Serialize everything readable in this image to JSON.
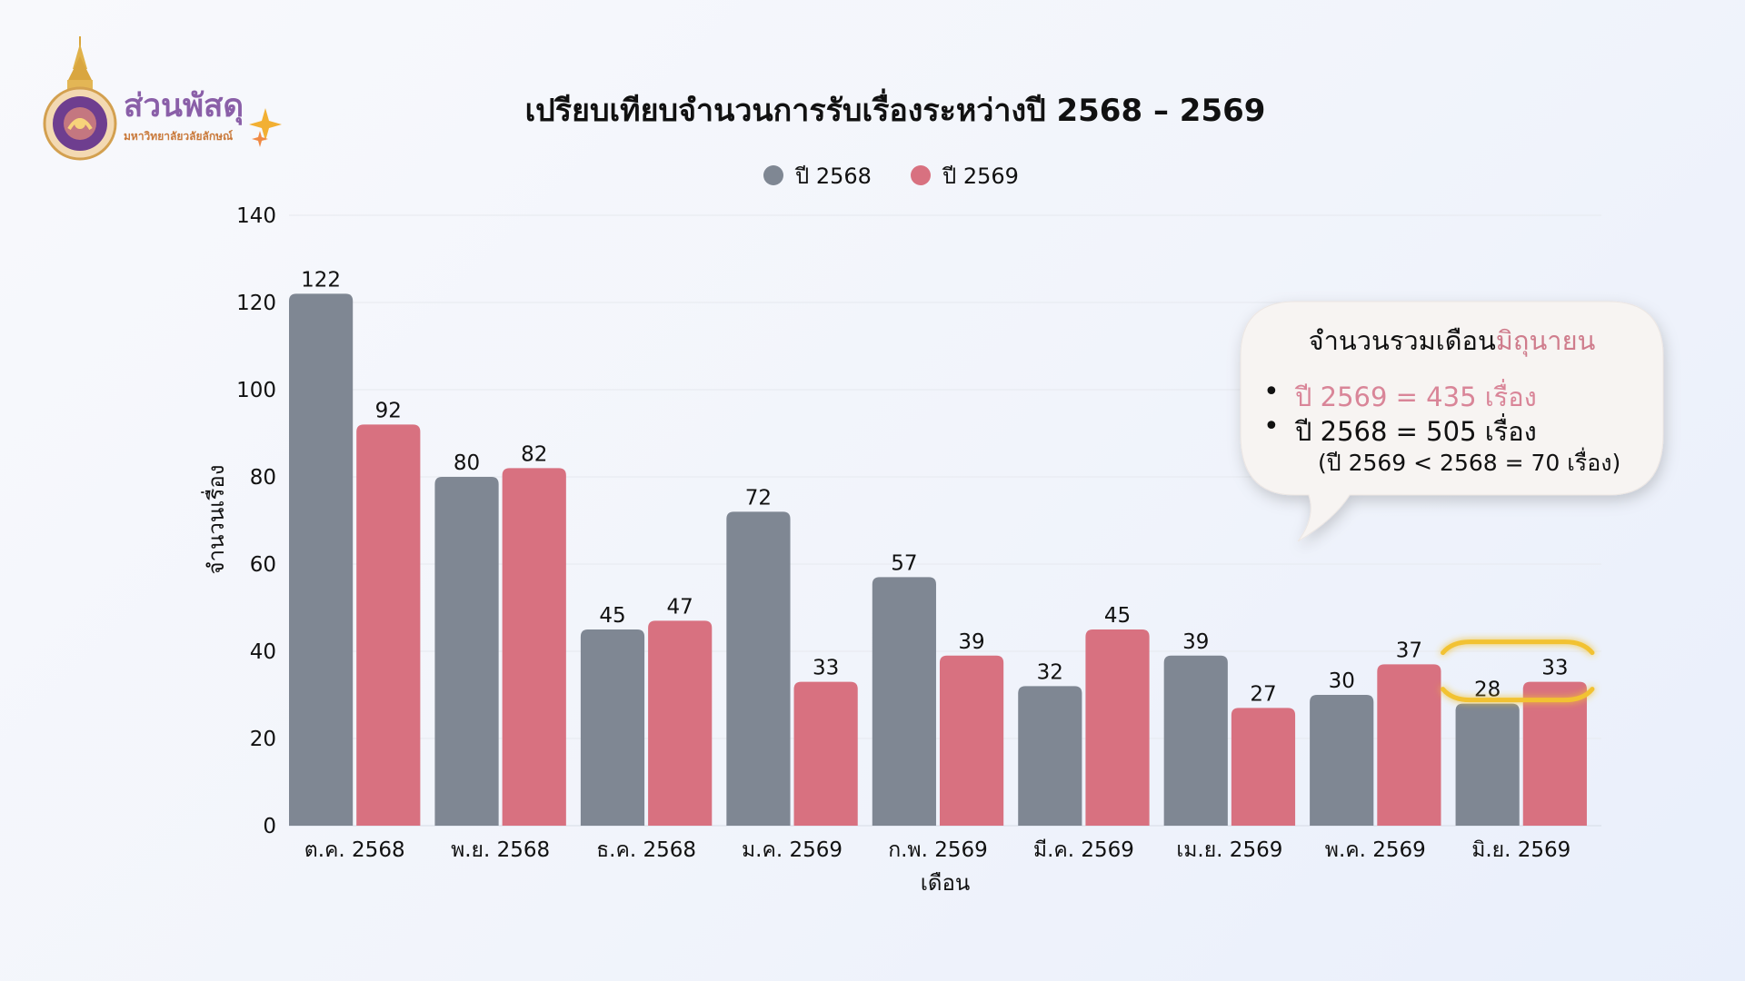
{
  "logo": {
    "title": "ส่วนพัสดุ",
    "subtitle": "มหาวิทยาลัยวลัยลักษณ์",
    "emblem": "university-seal"
  },
  "callout": {
    "title_prefix": "จำนวนรวมเดือน",
    "title_accent": "มิถุนายน",
    "line1": "ปี 2569 = 435 เรื่อง",
    "line2": "ปี 2568 = 505 เรื่อง",
    "line3": "(ปี 2569 < 2568 = 70 เรื่อง)",
    "bullet": "•"
  },
  "colors": {
    "series_2568": "#7f8793",
    "series_2569": "#d87180",
    "highlight": "#f2c232",
    "callout_accent": "#d98598"
  },
  "chart_data": {
    "type": "bar",
    "title": "เปรียบเทียบจำนวนการรับเรื่องระหว่างปี 2568 – 2569",
    "xlabel": "เดือน",
    "ylabel": "จำนวนเรื่อง",
    "ylim": [
      0,
      140
    ],
    "yticks": [
      0,
      20,
      40,
      60,
      80,
      100,
      120,
      140
    ],
    "grid": true,
    "legend_position": "top-center",
    "categories": [
      "ต.ค. 2568",
      "พ.ย. 2568",
      "ธ.ค. 2568",
      "ม.ค. 2569",
      "ก.พ. 2569",
      "มี.ค. 2569",
      "เม.ย. 2569",
      "พ.ค. 2569",
      "มิ.ย. 2569"
    ],
    "series": [
      {
        "name": "ปี 2568",
        "color": "#7f8793",
        "values": [
          122,
          80,
          45,
          72,
          57,
          32,
          39,
          30,
          28
        ]
      },
      {
        "name": "ปี 2569",
        "color": "#d87180",
        "values": [
          92,
          82,
          47,
          33,
          39,
          45,
          27,
          37,
          33
        ]
      }
    ],
    "highlighted_category": "มิ.ย. 2569"
  }
}
